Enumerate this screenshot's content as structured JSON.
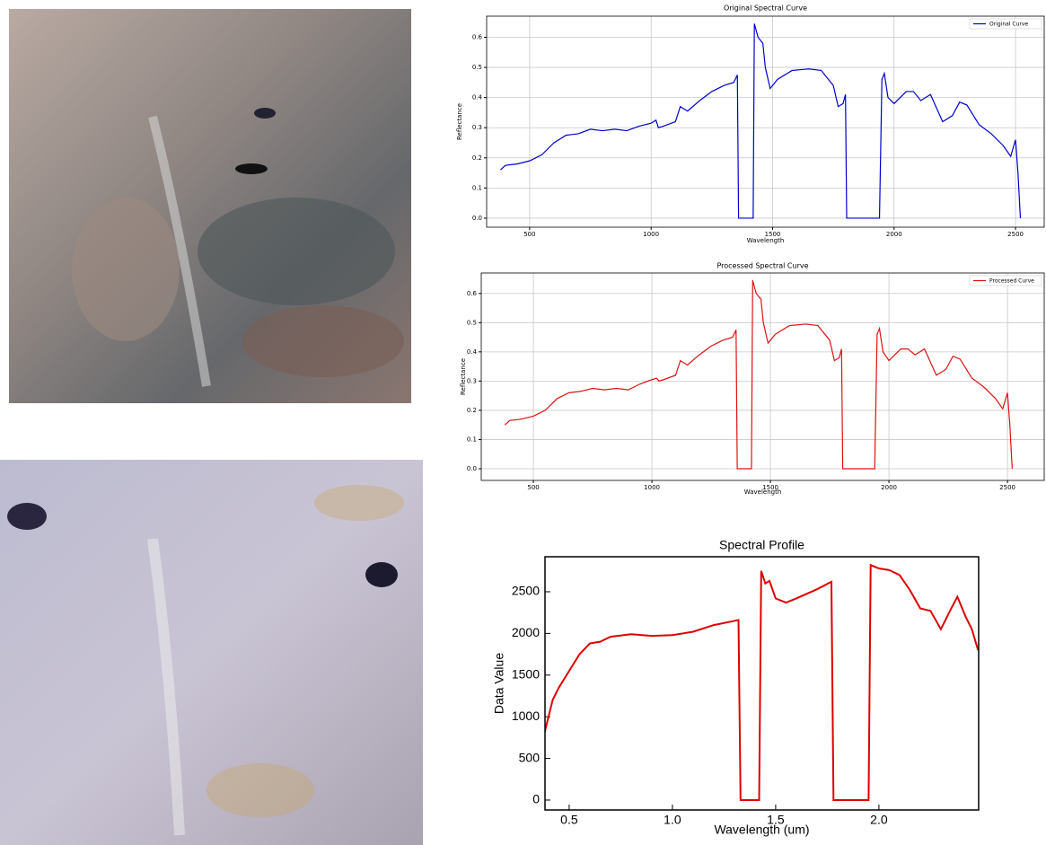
{
  "chart_data": [
    {
      "type": "line",
      "title": "Original Spectral Curve",
      "x_label": "Wavelength",
      "y_label": "Reflectance",
      "x": [
        380,
        400,
        450,
        500,
        550,
        600,
        650,
        700,
        750,
        800,
        850,
        900,
        950,
        1000,
        1020,
        1030,
        1050,
        1100,
        1120,
        1150,
        1200,
        1250,
        1300,
        1340,
        1355,
        1360,
        1400,
        1420,
        1425,
        1440,
        1460,
        1470,
        1490,
        1520,
        1580,
        1650,
        1700,
        1750,
        1770,
        1790,
        1800,
        1805,
        1940,
        1950,
        1960,
        1975,
        2000,
        2050,
        2080,
        2110,
        2150,
        2200,
        2240,
        2270,
        2300,
        2350,
        2400,
        2450,
        2480,
        2500,
        2510,
        2520
      ],
      "series": [
        {
          "name": "Original Curve",
          "color": "#0000cc",
          "values": [
            0.16,
            0.175,
            0.18,
            0.19,
            0.21,
            0.25,
            0.275,
            0.28,
            0.295,
            0.29,
            0.295,
            0.29,
            0.305,
            0.315,
            0.325,
            0.3,
            0.305,
            0.32,
            0.37,
            0.355,
            0.39,
            0.42,
            0.44,
            0.45,
            0.475,
            0,
            0,
            0,
            0.645,
            0.6,
            0.58,
            0.5,
            0.43,
            0.46,
            0.49,
            0.495,
            0.49,
            0.44,
            0.37,
            0.38,
            0.41,
            0,
            0,
            0.46,
            0.48,
            0.4,
            0.38,
            0.42,
            0.42,
            0.39,
            0.41,
            0.32,
            0.34,
            0.385,
            0.375,
            0.31,
            0.28,
            0.24,
            0.205,
            0.26,
            0.15,
            0
          ]
        }
      ],
      "xlim": [
        323,
        2618
      ],
      "ylim": [
        -0.03,
        0.67
      ],
      "xticks": [
        500,
        1000,
        1500,
        2000,
        2500
      ],
      "yticks": [
        {
          "value": 0,
          "label": "0.0"
        },
        0.1,
        0.2,
        0.3,
        0.4,
        0.5,
        0.6
      ],
      "grid": true,
      "legend": "upper-right"
    },
    {
      "type": "line",
      "title": "Processed Spectral Curve",
      "x_label": "Wavelength",
      "y_label": "Reflectance",
      "x": [
        380,
        400,
        450,
        500,
        550,
        600,
        650,
        700,
        750,
        800,
        850,
        900,
        950,
        1000,
        1020,
        1030,
        1050,
        1100,
        1120,
        1150,
        1200,
        1250,
        1300,
        1340,
        1355,
        1360,
        1400,
        1420,
        1425,
        1440,
        1460,
        1470,
        1490,
        1520,
        1580,
        1650,
        1700,
        1750,
        1770,
        1790,
        1800,
        1805,
        1940,
        1950,
        1960,
        1975,
        2000,
        2050,
        2080,
        2110,
        2150,
        2200,
        2240,
        2270,
        2300,
        2350,
        2400,
        2450,
        2480,
        2500,
        2510,
        2520
      ],
      "series": [
        {
          "name": "Processed Curve",
          "color": "#dd1111",
          "values": [
            0.15,
            0.165,
            0.17,
            0.18,
            0.2,
            0.24,
            0.26,
            0.265,
            0.275,
            0.27,
            0.275,
            0.27,
            0.29,
            0.305,
            0.31,
            0.3,
            0.305,
            0.32,
            0.37,
            0.355,
            0.39,
            0.42,
            0.44,
            0.45,
            0.475,
            0,
            0,
            0,
            0.645,
            0.6,
            0.58,
            0.5,
            0.43,
            0.46,
            0.49,
            0.495,
            0.49,
            0.44,
            0.37,
            0.38,
            0.41,
            0,
            0,
            0.46,
            0.48,
            0.4,
            0.37,
            0.41,
            0.41,
            0.39,
            0.41,
            0.32,
            0.34,
            0.385,
            0.375,
            0.31,
            0.28,
            0.24,
            0.205,
            0.26,
            0.15,
            0
          ]
        }
      ],
      "xlim": [
        280,
        2655
      ],
      "ylim": [
        -0.04,
        0.67
      ],
      "xticks": [
        500,
        1000,
        1500,
        2000,
        2500
      ],
      "yticks": [
        {
          "value": 0,
          "label": "0.0"
        },
        0.1,
        0.2,
        0.3,
        0.4,
        0.5,
        0.6
      ],
      "grid": true,
      "legend": "upper-right"
    },
    {
      "type": "line",
      "title": "Spectral Profile",
      "x_label": "Wavelength (um)",
      "y_label": "Data Value",
      "color": "#dd0000",
      "x": [
        0.38,
        0.42,
        0.45,
        0.5,
        0.55,
        0.6,
        0.65,
        0.7,
        0.8,
        0.9,
        1.0,
        1.1,
        1.2,
        1.3,
        1.32,
        1.33,
        1.42,
        1.43,
        1.45,
        1.47,
        1.5,
        1.55,
        1.6,
        1.7,
        1.77,
        1.78,
        1.95,
        1.96,
        2.0,
        2.05,
        2.1,
        2.15,
        2.2,
        2.25,
        2.3,
        2.35,
        2.38,
        2.42,
        2.45,
        2.48
      ],
      "values": [
        800,
        1200,
        1350,
        1550,
        1750,
        1880,
        1900,
        1960,
        1990,
        1970,
        1980,
        2020,
        2100,
        2150,
        2160,
        0,
        0,
        2750,
        2600,
        2630,
        2420,
        2370,
        2420,
        2530,
        2620,
        0,
        0,
        2820,
        2780,
        2760,
        2700,
        2520,
        2300,
        2270,
        2050,
        2300,
        2440,
        2200,
        2050,
        1800
      ],
      "xlim": [
        0.383,
        2.483
      ],
      "ylim": [
        -119,
        2920
      ],
      "xticks": [
        0.5,
        {
          "value": 1,
          "label": "1.0"
        },
        1.5,
        {
          "value": 2,
          "label": "2.0"
        }
      ],
      "yticks": [
        0,
        500,
        1000,
        1500,
        2000,
        2500
      ],
      "grid": false
    }
  ]
}
